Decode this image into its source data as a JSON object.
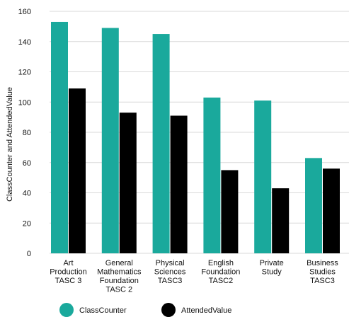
{
  "chart_data": {
    "type": "bar",
    "categories": [
      [
        "Art",
        "Production",
        "TASC 3"
      ],
      [
        "General",
        "Mathematics",
        "Foundation",
        "TASC 2"
      ],
      [
        "Physical",
        "Sciences",
        "TASC3"
      ],
      [
        "English",
        "Foundation",
        "TASC2"
      ],
      [
        "Private",
        "Study"
      ],
      [
        "Business",
        "Studies",
        "TASC3"
      ]
    ],
    "series": [
      {
        "name": "ClassCounter",
        "color": "#1aa99c",
        "values": [
          153,
          149,
          145,
          103,
          101,
          63
        ]
      },
      {
        "name": "AttendedValue",
        "color": "#000000",
        "values": [
          109,
          93,
          91,
          55,
          43,
          56
        ]
      }
    ],
    "title": "",
    "xlabel": "",
    "ylabel": "ClassCounter and AttendedValue",
    "ylim": [
      0,
      160
    ],
    "yticks": [
      0,
      20,
      40,
      60,
      80,
      100,
      120,
      140,
      160
    ],
    "grid": true,
    "legend_position": "bottom-left"
  }
}
